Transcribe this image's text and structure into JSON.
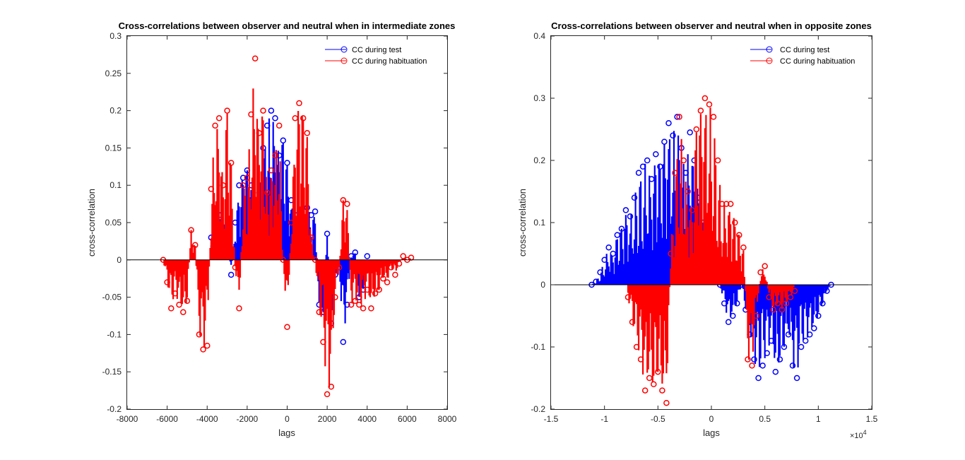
{
  "chart_data": [
    {
      "type": "line",
      "title": "Cross-correlations between observer and neutral when in intermediate zones",
      "xlabel": "lags",
      "ylabel": "cross-correlation",
      "xlim": [
        -8000,
        8000
      ],
      "ylim": [
        -0.2,
        0.3
      ],
      "xticks": [
        -8000,
        -6000,
        -4000,
        -2000,
        0,
        2000,
        4000,
        6000,
        8000
      ],
      "xtick_labels": [
        "-8000",
        "-6000",
        "-4000",
        "-2000",
        "0",
        "2000",
        "4000",
        "6000",
        "8000"
      ],
      "yticks": [
        -0.2,
        -0.15,
        -0.1,
        -0.05,
        0,
        0.05,
        0.1,
        0.15,
        0.2,
        0.25,
        0.3
      ],
      "ytick_labels": [
        "-0.2",
        "-0.15",
        "-0.1",
        "-0.05",
        "0",
        "0.05",
        "0.1",
        "0.15",
        "0.2",
        "0.25",
        "0.3"
      ],
      "x_exponent_label": "",
      "legend_position": "top-right",
      "zero_line": true,
      "series": [
        {
          "name": "CC during test",
          "color": "#0000ff",
          "x": [
            -3800,
            -3400,
            -3000,
            -2800,
            -2600,
            -2400,
            -2200,
            -2000,
            -1800,
            -1600,
            -1400,
            -1200,
            -1000,
            -800,
            -600,
            -400,
            -200,
            0,
            200,
            400,
            600,
            800,
            1000,
            1200,
            1400,
            1600,
            1800,
            2000,
            2200,
            2400,
            2600,
            2800,
            3000,
            3200,
            3400,
            3600,
            3800,
            4000
          ],
          "y": [
            0.03,
            0.06,
            0.04,
            -0.02,
            0.05,
            0.1,
            0.11,
            0.12,
            0.1,
            0.05,
            0.09,
            0.15,
            0.18,
            0.2,
            0.19,
            0.14,
            0.16,
            0.13,
            0.08,
            0.06,
            0.05,
            0.04,
            0.07,
            0.06,
            0.065,
            -0.06,
            -0.07,
            0.035,
            -0.085,
            -0.02,
            -0.01,
            -0.11,
            -0.06,
            0.005,
            0.01,
            -0.05,
            -0.04,
            0.005
          ]
        },
        {
          "name": "CC during habituation",
          "color": "#ff0000",
          "x": [
            -6200,
            -6000,
            -5800,
            -5600,
            -5400,
            -5200,
            -5000,
            -4800,
            -4600,
            -4400,
            -4200,
            -4000,
            -3800,
            -3600,
            -3400,
            -3200,
            -3000,
            -2800,
            -2600,
            -2400,
            -2200,
            -2000,
            -1800,
            -1600,
            -1400,
            -1200,
            -1000,
            -800,
            -600,
            -400,
            -200,
            0,
            200,
            400,
            600,
            800,
            1000,
            1200,
            1400,
            1600,
            1800,
            2000,
            2200,
            2400,
            2600,
            2800,
            3000,
            3200,
            3400,
            3600,
            3800,
            4000,
            4200,
            4400,
            4600,
            4800,
            5000,
            5200,
            5400,
            5600,
            5800,
            6000,
            6200
          ],
          "y": [
            0.0,
            -0.03,
            -0.065,
            -0.045,
            -0.06,
            -0.07,
            -0.055,
            0.04,
            0.02,
            -0.1,
            -0.12,
            -0.115,
            0.095,
            0.18,
            0.19,
            0.1,
            0.2,
            0.13,
            -0.01,
            -0.065,
            0.1,
            0.11,
            0.195,
            0.27,
            0.17,
            0.2,
            0.09,
            0.12,
            0.14,
            0.18,
            0.0,
            -0.09,
            0.05,
            0.19,
            0.21,
            0.19,
            0.17,
            0.03,
            0.0,
            -0.07,
            -0.11,
            -0.18,
            -0.17,
            -0.05,
            -0.01,
            0.08,
            0.075,
            -0.06,
            -0.055,
            -0.06,
            -0.065,
            -0.04,
            -0.065,
            -0.045,
            -0.04,
            -0.025,
            -0.03,
            -0.01,
            -0.02,
            -0.005,
            0.005,
            0.0,
            0.003
          ]
        }
      ]
    },
    {
      "type": "line",
      "title": "Cross-correlations between observer and neutral when in opposite zones",
      "xlabel": "lags",
      "ylabel": "cross-correlation",
      "xlim": [
        -1.5,
        1.5
      ],
      "ylim": [
        -0.2,
        0.4
      ],
      "xticks": [
        -1.5,
        -1,
        -0.5,
        0,
        0.5,
        1,
        1.5
      ],
      "xtick_labels": [
        "-1.5",
        "-1",
        "-0.5",
        "0",
        "0.5",
        "1",
        "1.5"
      ],
      "yticks": [
        -0.2,
        -0.1,
        0,
        0.1,
        0.2,
        0.3,
        0.4
      ],
      "ytick_labels": [
        "-0.2",
        "-0.1",
        "0",
        "0.1",
        "0.2",
        "0.3",
        "0.4"
      ],
      "x_exponent_label": "×10",
      "x_exponent_power": "4",
      "legend_position": "top-right",
      "zero_line": true,
      "series": [
        {
          "name": "CC during test",
          "color": "#0000ff",
          "x": [
            -1.12,
            -1.08,
            -1.04,
            -1.0,
            -0.96,
            -0.92,
            -0.88,
            -0.84,
            -0.8,
            -0.76,
            -0.72,
            -0.68,
            -0.64,
            -0.6,
            -0.56,
            -0.52,
            -0.48,
            -0.44,
            -0.4,
            -0.36,
            -0.32,
            -0.28,
            -0.24,
            -0.2,
            -0.16,
            -0.12,
            -0.08,
            -0.04,
            0.0,
            0.04,
            0.08,
            0.12,
            0.16,
            0.2,
            0.24,
            0.28,
            0.32,
            0.36,
            0.4,
            0.44,
            0.48,
            0.52,
            0.56,
            0.6,
            0.64,
            0.68,
            0.72,
            0.76,
            0.8,
            0.84,
            0.88,
            0.92,
            0.96,
            1.0,
            1.04,
            1.08,
            1.12
          ],
          "y": [
            0.0,
            0.005,
            0.02,
            0.04,
            0.06,
            0.05,
            0.08,
            0.09,
            0.12,
            0.11,
            0.14,
            0.18,
            0.19,
            0.2,
            0.17,
            0.21,
            0.19,
            0.23,
            0.26,
            0.24,
            0.27,
            0.22,
            0.18,
            0.245,
            0.2,
            0.14,
            0.1,
            0.06,
            0.04,
            0.02,
            0.0,
            -0.03,
            -0.06,
            -0.05,
            -0.03,
            0.0,
            -0.04,
            -0.08,
            -0.12,
            -0.15,
            -0.13,
            -0.11,
            -0.09,
            -0.14,
            -0.12,
            -0.1,
            -0.08,
            -0.13,
            -0.15,
            -0.1,
            -0.09,
            -0.08,
            -0.07,
            -0.05,
            -0.03,
            -0.01,
            0.0
          ]
        },
        {
          "name": "CC during habituation",
          "color": "#ff0000",
          "x": [
            -0.78,
            -0.74,
            -0.7,
            -0.66,
            -0.62,
            -0.58,
            -0.54,
            -0.5,
            -0.46,
            -0.42,
            -0.38,
            -0.34,
            -0.3,
            -0.26,
            -0.22,
            -0.18,
            -0.14,
            -0.1,
            -0.06,
            -0.02,
            0.02,
            0.06,
            0.1,
            0.14,
            0.18,
            0.22,
            0.26,
            0.3,
            0.34,
            0.38,
            0.42,
            0.46,
            0.5,
            0.54,
            0.58,
            0.62,
            0.66,
            0.7,
            0.74,
            0.78
          ],
          "y": [
            -0.02,
            -0.06,
            -0.1,
            -0.12,
            -0.17,
            -0.15,
            -0.16,
            -0.14,
            -0.17,
            -0.19,
            0.05,
            0.18,
            0.27,
            0.2,
            0.15,
            0.12,
            0.25,
            0.28,
            0.3,
            0.29,
            0.27,
            0.2,
            0.13,
            0.13,
            0.13,
            0.1,
            0.08,
            0.06,
            -0.12,
            -0.13,
            -0.05,
            0.02,
            0.03,
            -0.02,
            -0.04,
            -0.03,
            -0.04,
            -0.03,
            -0.02,
            -0.01
          ]
        }
      ]
    }
  ]
}
